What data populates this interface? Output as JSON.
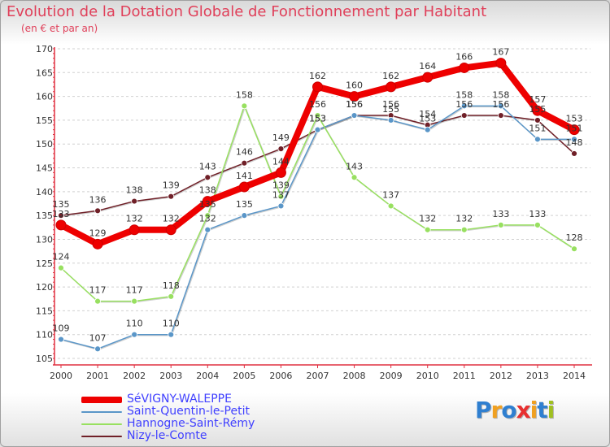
{
  "title": "Evolution de la Dotation Globale de Fonctionnement par Habitant",
  "subtitle": "(en € et par an)",
  "logo": {
    "text": "Proxiti",
    "colors": [
      "#2f7fd0",
      "#f0a020",
      "#2f7fd0",
      "#e83030",
      "#f0a020",
      "#2f7fd0",
      "#a0c020"
    ]
  },
  "chart_data": {
    "type": "line",
    "x": [
      "2000",
      "2001",
      "2002",
      "2003",
      "2004",
      "2005",
      "2006",
      "2007",
      "2008",
      "2009",
      "2010",
      "2011",
      "2012",
      "2013",
      "2014"
    ],
    "ylim": [
      105,
      170
    ],
    "yticks": [
      105,
      110,
      115,
      120,
      125,
      130,
      135,
      140,
      145,
      150,
      155,
      160,
      165,
      170
    ],
    "grid": "horizontal dashed",
    "legend_position": "bottom-left",
    "series": [
      {
        "name": "SéVIGNY-WALEPPE",
        "color": "#ee0000",
        "values": [
          133,
          129,
          132,
          132,
          138,
          141,
          144,
          162,
          160,
          162,
          164,
          166,
          167,
          157,
          153
        ]
      },
      {
        "name": "Saint-Quentin-le-Petit",
        "color": "#5a96c8",
        "values": [
          109,
          107,
          110,
          110,
          132,
          135,
          137,
          153,
          156,
          155,
          153,
          158,
          158,
          151,
          151
        ]
      },
      {
        "name": "Hannogne-Saint-Rémy",
        "color": "#98e060",
        "values": [
          124,
          117,
          117,
          118,
          135,
          158,
          139,
          156,
          143,
          137,
          132,
          132,
          133,
          133,
          128
        ]
      },
      {
        "name": "Nizy-le-Comte",
        "color": "#702028",
        "values": [
          135,
          136,
          138,
          139,
          143,
          146,
          149,
          153,
          156,
          156,
          154,
          156,
          156,
          155,
          148
        ]
      }
    ]
  }
}
